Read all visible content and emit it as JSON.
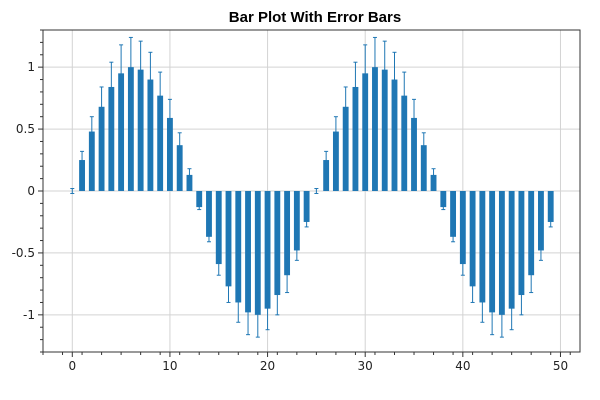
{
  "chart_data": {
    "type": "bar",
    "title": "Bar Plot With Error Bars",
    "xlabel": "",
    "ylabel": "",
    "xlim": [
      -3,
      52
    ],
    "ylim": [
      -1.3,
      1.3
    ],
    "xticks": [
      0,
      10,
      20,
      30,
      40,
      50
    ],
    "xtick_labels": [
      "0",
      "10",
      "20",
      "30",
      "40",
      "50"
    ],
    "yticks": [
      -1,
      -0.5,
      0,
      0.5,
      1
    ],
    "ytick_labels": [
      "-1",
      "-0.5",
      "0",
      "0.5",
      "1"
    ],
    "grid": true,
    "bar_color": "#1f77b4",
    "error_color": "#1f77b4",
    "x": [
      0,
      1,
      2,
      3,
      4,
      5,
      6,
      7,
      8,
      9,
      10,
      11,
      12,
      13,
      14,
      15,
      16,
      17,
      18,
      19,
      20,
      21,
      22,
      23,
      24,
      25,
      26,
      27,
      28,
      29,
      30,
      31,
      32,
      33,
      34,
      35,
      36,
      37,
      38,
      39,
      40,
      41,
      42,
      43,
      44,
      45,
      46,
      47,
      48,
      49
    ],
    "values": [
      0,
      0.25,
      0.48,
      0.68,
      0.84,
      0.95,
      1.0,
      0.98,
      0.9,
      0.77,
      0.59,
      0.37,
      0.13,
      -0.13,
      -0.37,
      -0.59,
      -0.77,
      -0.9,
      -0.98,
      -1.0,
      -0.95,
      -0.84,
      -0.68,
      -0.48,
      -0.25,
      0,
      0.25,
      0.48,
      0.68,
      0.84,
      0.95,
      1.0,
      0.98,
      0.9,
      0.77,
      0.59,
      0.37,
      0.13,
      -0.13,
      -0.37,
      -0.59,
      -0.77,
      -0.9,
      -0.98,
      -1.0,
      -0.95,
      -0.84,
      -0.68,
      -0.48,
      -0.25
    ],
    "errors": [
      0.02,
      0.07,
      0.12,
      0.16,
      0.2,
      0.23,
      0.24,
      0.23,
      0.22,
      0.19,
      0.15,
      0.1,
      0.05,
      0.02,
      0.04,
      0.09,
      0.13,
      0.16,
      0.18,
      0.18,
      0.17,
      0.16,
      0.14,
      0.08,
      0.04,
      0.02,
      0.07,
      0.12,
      0.16,
      0.2,
      0.23,
      0.24,
      0.23,
      0.22,
      0.19,
      0.15,
      0.1,
      0.05,
      0.02,
      0.04,
      0.09,
      0.13,
      0.16,
      0.18,
      0.18,
      0.17,
      0.16,
      0.14,
      0.08,
      0.04
    ]
  }
}
